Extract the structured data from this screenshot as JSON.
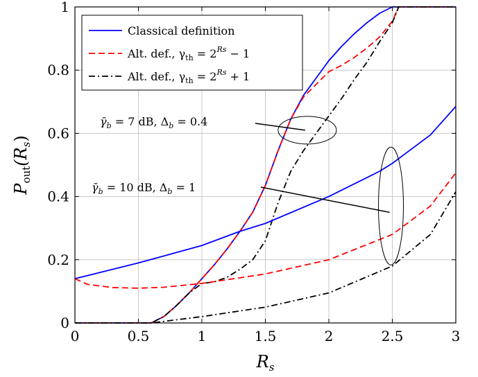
{
  "chart_data": {
    "type": "line",
    "xlabel": "R_s",
    "ylabel": "P_out(R_s)",
    "xlim": [
      0,
      3
    ],
    "ylim": [
      0,
      1
    ],
    "xticks": [
      "0",
      "0.5",
      "1",
      "1.5",
      "2",
      "2.5",
      "3"
    ],
    "yticks": [
      "0",
      "0.2",
      "0.4",
      "0.6",
      "0.8",
      "1"
    ],
    "grid": true,
    "legend_position": "top-left",
    "series": [
      {
        "name": "Classical definition",
        "group": "γ̄b = 7 dB, Δb = 0.4",
        "color": "#0000ff",
        "dash": "solid",
        "x": [
          0,
          0.6,
          0.7,
          0.8,
          0.9,
          1.0,
          1.1,
          1.2,
          1.3,
          1.4,
          1.5,
          1.6,
          1.7,
          1.8,
          1.9,
          2.0,
          2.1,
          2.2,
          2.3,
          2.4,
          2.5,
          2.55,
          3.0
        ],
        "y": [
          0,
          0,
          0.02,
          0.055,
          0.095,
          0.14,
          0.185,
          0.235,
          0.29,
          0.35,
          0.435,
          0.545,
          0.645,
          0.72,
          0.775,
          0.83,
          0.875,
          0.915,
          0.95,
          0.98,
          1.0,
          1.0,
          1.0
        ]
      },
      {
        "name": "Alt. def., γth = 2^Rs − 1",
        "group": "γ̄b = 7 dB, Δb = 0.4",
        "color": "#ff0000",
        "dash": "dashed",
        "x": [
          0,
          0.6,
          0.7,
          0.8,
          0.9,
          1.0,
          1.1,
          1.2,
          1.3,
          1.4,
          1.5,
          1.6,
          1.7,
          1.8,
          1.9,
          2.0,
          2.1,
          2.2,
          2.3,
          2.4,
          2.5,
          2.55,
          3.0
        ],
        "y": [
          0,
          0,
          0.02,
          0.055,
          0.095,
          0.14,
          0.185,
          0.235,
          0.29,
          0.35,
          0.435,
          0.545,
          0.645,
          0.715,
          0.755,
          0.795,
          0.815,
          0.84,
          0.87,
          0.905,
          0.955,
          1.0,
          1.0
        ]
      },
      {
        "name": "Alt. def., γth = 2^Rs + 1",
        "group": "γ̄b = 7 dB, Δb = 0.4",
        "color": "#000000",
        "dash": "dashdot",
        "x": [
          0,
          0.6,
          0.7,
          0.8,
          0.9,
          1.0,
          1.1,
          1.2,
          1.3,
          1.4,
          1.5,
          1.6,
          1.7,
          1.8,
          1.9,
          2.0,
          2.1,
          2.2,
          2.3,
          2.4,
          2.5,
          2.55,
          3.0
        ],
        "y": [
          0,
          0,
          0.02,
          0.055,
          0.095,
          0.125,
          0.13,
          0.145,
          0.17,
          0.2,
          0.26,
          0.38,
          0.48,
          0.545,
          0.6,
          0.655,
          0.71,
          0.77,
          0.825,
          0.89,
          0.95,
          1.0,
          1.0
        ]
      },
      {
        "name": "Classical definition",
        "group": "γ̄b = 10 dB, Δb = 1",
        "color": "#0000ff",
        "dash": "solid",
        "x": [
          0,
          0.5,
          1.0,
          1.3,
          1.5,
          2.0,
          2.4,
          2.5,
          2.6,
          2.8,
          3.0
        ],
        "y": [
          0.14,
          0.19,
          0.245,
          0.29,
          0.315,
          0.4,
          0.48,
          0.505,
          0.535,
          0.595,
          0.685
        ]
      },
      {
        "name": "Alt. def., γth = 2^Rs − 1",
        "group": "γ̄b = 10 dB, Δb = 1",
        "color": "#ff0000",
        "dash": "dashed",
        "x": [
          0,
          0.1,
          0.3,
          0.5,
          0.7,
          1.0,
          1.5,
          2.0,
          2.5,
          2.8,
          3.0
        ],
        "y": [
          0.14,
          0.122,
          0.112,
          0.11,
          0.113,
          0.125,
          0.155,
          0.2,
          0.28,
          0.37,
          0.475
        ]
      },
      {
        "name": "Alt. def., γth = 2^Rs + 1",
        "group": "γ̄b = 10 dB, Δb = 1",
        "color": "#000000",
        "dash": "dashdot",
        "x": [
          0,
          0.6,
          0.7,
          1.0,
          1.5,
          2.0,
          2.5,
          2.8,
          3.0
        ],
        "y": [
          0,
          0,
          0.005,
          0.02,
          0.05,
          0.095,
          0.18,
          0.28,
          0.415
        ]
      }
    ],
    "annotations": [
      {
        "label_pre": "γ̄",
        "label_sub1": "b",
        "label_mid": " = 7 dB, Δ",
        "label_sub2": "b",
        "label_post": " = 0.4",
        "target": [
          1.83,
          0.61
        ]
      },
      {
        "label_pre": "γ̄",
        "label_sub1": "b",
        "label_mid": " = 10 dB, Δ",
        "label_sub2": "b",
        "label_post": " = 1",
        "target": [
          2.5,
          0.35
        ]
      }
    ],
    "legend": [
      {
        "text": "Classical definition",
        "color": "#0000ff",
        "dash": "solid"
      },
      {
        "text_pre": "Alt. def., γ",
        "text_sub": "th",
        "text_mid": " = 2",
        "text_sup": "Rs",
        "text_post": " − 1",
        "color": "#ff0000",
        "dash": "dashed"
      },
      {
        "text_pre": "Alt. def., γ",
        "text_sub": "th",
        "text_mid": " = 2",
        "text_sup": "Rs",
        "text_post": " + 1",
        "color": "#000000",
        "dash": "dashdot"
      }
    ]
  }
}
